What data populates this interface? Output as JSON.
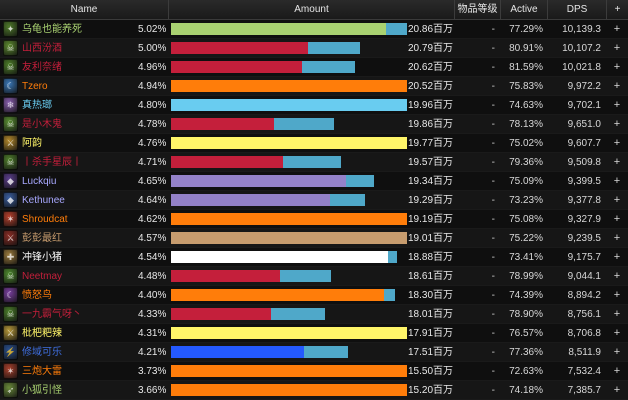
{
  "header": {
    "name": "Name",
    "amount": "Amount",
    "ilvl": "物品等级",
    "active": "Active",
    "dps": "DPS",
    "plus": "+"
  },
  "rows": [
    {
      "name": "乌龟也能养死",
      "name_color": "#a9d271",
      "icon": "fel-orb-icon",
      "icon_color": "#4f7a2a",
      "pct": "5.02%",
      "fraction": 1.0,
      "ext_fraction": 0.088,
      "bar_color": "#a9d271",
      "amount": "20.86百万",
      "ilvl": "-",
      "active": "77.29%",
      "dps": "10,139.3",
      "plus": "+"
    },
    {
      "name": "山西汾酒",
      "name_color": "#c41f3b",
      "icon": "skull-icon",
      "icon_color": "#5c8a2e",
      "pct": "5.00%",
      "fraction": 0.8,
      "ext_fraction": 0.277,
      "bar_color": "#c41f3b",
      "amount": "20.79百万",
      "ilvl": "-",
      "active": "80.91%",
      "dps": "10,107.2",
      "plus": "+"
    },
    {
      "name": "友利奈绪",
      "name_color": "#c41f3b",
      "icon": "skull-icon",
      "icon_color": "#4d7d28",
      "pct": "4.96%",
      "fraction": 0.78,
      "ext_fraction": 0.29,
      "bar_color": "#c41f3b",
      "amount": "20.62百万",
      "ilvl": "-",
      "active": "81.59%",
      "dps": "10,021.8",
      "plus": "+"
    },
    {
      "name": "Tzero",
      "name_color": "#ff7d0a",
      "icon": "moonkin-icon",
      "icon_color": "#3a78b8",
      "pct": "4.94%",
      "fraction": 1.0,
      "ext_fraction": 0.0,
      "bar_color": "#ff7d0a",
      "amount": "20.52百万",
      "ilvl": "-",
      "active": "75.83%",
      "dps": "9,972.2",
      "plus": "+"
    },
    {
      "name": "真热瑯",
      "name_color": "#69ccf0",
      "icon": "frost-icon",
      "icon_color": "#8a5fb0",
      "pct": "4.80%",
      "fraction": 1.0,
      "ext_fraction": 0.0,
      "bar_color": "#69ccf0",
      "amount": "19.96百万",
      "ilvl": "-",
      "active": "74.63%",
      "dps": "9,702.1",
      "plus": "+"
    },
    {
      "name": "是小木鬼",
      "name_color": "#c41f3b",
      "icon": "skull-icon",
      "icon_color": "#5a8f32",
      "pct": "4.78%",
      "fraction": 0.69,
      "ext_fraction": 0.37,
      "bar_color": "#c41f3b",
      "amount": "19.86百万",
      "ilvl": "-",
      "active": "78.13%",
      "dps": "9,651.0",
      "plus": "+"
    },
    {
      "name": "阿韵",
      "name_color": "#fff569",
      "icon": "blade-icon",
      "icon_color": "#b58a2c",
      "pct": "4.76%",
      "fraction": 1.0,
      "ext_fraction": 0.0,
      "bar_color": "#fff569",
      "amount": "19.77百万",
      "ilvl": "-",
      "active": "75.02%",
      "dps": "9,607.7",
      "plus": "+"
    },
    {
      "name": "丨杀手星辰丨",
      "name_color": "#c41f3b",
      "icon": "skull-icon",
      "icon_color": "#507f2c",
      "pct": "4.71%",
      "fraction": 0.72,
      "ext_fraction": 0.34,
      "bar_color": "#c41f3b",
      "amount": "19.57百万",
      "ilvl": "-",
      "active": "79.36%",
      "dps": "9,509.8",
      "plus": "+"
    },
    {
      "name": "Luckqiu",
      "name_color": "#a8a8ff",
      "icon": "shadow-icon",
      "icon_color": "#5b3e8c",
      "pct": "4.65%",
      "fraction": 0.86,
      "ext_fraction": 0.14,
      "bar_color": "#9482c9",
      "amount": "19.34百万",
      "ilvl": "-",
      "active": "75.09%",
      "dps": "9,399.5",
      "plus": "+"
    },
    {
      "name": "Kethunee",
      "name_color": "#a8a8ff",
      "icon": "shadow-icon",
      "icon_color": "#3a5ea0",
      "pct": "4.64%",
      "fraction": 0.82,
      "ext_fraction": 0.18,
      "bar_color": "#9482c9",
      "amount": "19.29百万",
      "ilvl": "-",
      "active": "73.23%",
      "dps": "9,377.8",
      "plus": "+"
    },
    {
      "name": "Shroudcat",
      "name_color": "#ff7d0a",
      "icon": "claw-icon",
      "icon_color": "#b8402c",
      "pct": "4.62%",
      "fraction": 1.0,
      "ext_fraction": 0.0,
      "bar_color": "#ff7d0a",
      "amount": "19.19百万",
      "ilvl": "-",
      "active": "75.08%",
      "dps": "9,327.9",
      "plus": "+"
    },
    {
      "name": "彭彭最红",
      "name_color": "#c79c6e",
      "icon": "sword-icon",
      "icon_color": "#8a2c24",
      "pct": "4.57%",
      "fraction": 1.0,
      "ext_fraction": 0.0,
      "bar_color": "#c79c6e",
      "amount": "19.01百万",
      "ilvl": "-",
      "active": "75.22%",
      "dps": "9,239.5",
      "plus": "+"
    },
    {
      "name": "冲锋小猪",
      "name_color": "#ffffff",
      "icon": "holy-icon",
      "icon_color": "#9a7a3c",
      "pct": "4.54%",
      "fraction": 0.96,
      "ext_fraction": 0.04,
      "bar_color": "#ffffff",
      "amount": "18.88百万",
      "ilvl": "-",
      "active": "73.41%",
      "dps": "9,175.7",
      "plus": "+"
    },
    {
      "name": "Neetmay",
      "name_color": "#c41f3b",
      "icon": "skull-icon",
      "icon_color": "#4e8a2e",
      "pct": "4.48%",
      "fraction": 0.68,
      "ext_fraction": 0.32,
      "bar_color": "#c41f3b",
      "amount": "18.61百万",
      "ilvl": "-",
      "active": "78.99%",
      "dps": "9,044.1",
      "plus": "+"
    },
    {
      "name": "愤怒鸟",
      "name_color": "#ff7d0a",
      "icon": "moonkin-icon",
      "icon_color": "#7a3fa0",
      "pct": "4.40%",
      "fraction": 0.95,
      "ext_fraction": 0.05,
      "bar_color": "#ff7d0a",
      "amount": "18.30百万",
      "ilvl": "-",
      "active": "74.39%",
      "dps": "8,894.2",
      "plus": "+"
    },
    {
      "name": "一九霸气呀丶",
      "name_color": "#c41f3b",
      "icon": "skull-icon",
      "icon_color": "#4b7e2a",
      "pct": "4.33%",
      "fraction": 0.65,
      "ext_fraction": 0.35,
      "bar_color": "#c41f3b",
      "amount": "18.01百万",
      "ilvl": "-",
      "active": "78.90%",
      "dps": "8,756.1",
      "plus": "+"
    },
    {
      "name": "枇杷粑辣",
      "name_color": "#fff569",
      "icon": "blade-icon",
      "icon_color": "#b89a3a",
      "pct": "4.31%",
      "fraction": 1.0,
      "ext_fraction": 0.0,
      "bar_color": "#fff569",
      "amount": "17.91百万",
      "ilvl": "-",
      "active": "76.57%",
      "dps": "8,706.8",
      "plus": "+"
    },
    {
      "name": "修域可乐",
      "name_color": "#3f6fe0",
      "icon": "shaman-icon",
      "icon_color": "#2a4f8c",
      "pct": "4.21%",
      "fraction": 0.75,
      "ext_fraction": 0.25,
      "bar_color": "#2459ff",
      "amount": "17.51百万",
      "ilvl": "-",
      "active": "77.36%",
      "dps": "8,511.9",
      "plus": "+"
    },
    {
      "name": "三炮大雷",
      "name_color": "#ff7d0a",
      "icon": "claw-icon",
      "icon_color": "#a8402c",
      "pct": "3.73%",
      "fraction": 1.0,
      "ext_fraction": 0.0,
      "bar_color": "#ff7d0a",
      "amount": "15.50百万",
      "ilvl": "-",
      "active": "72.63%",
      "dps": "7,532.4",
      "plus": "+"
    },
    {
      "name": "小狐引怪",
      "name_color": "#a9d271",
      "icon": "hunter-icon",
      "icon_color": "#6a8a3a",
      "pct": "3.66%",
      "fraction": 1.0,
      "ext_fraction": 0.0,
      "bar_color": "#ff7d0a",
      "amount": "15.20百万",
      "ilvl": "-",
      "active": "74.18%",
      "dps": "7,385.7",
      "plus": "+"
    }
  ]
}
